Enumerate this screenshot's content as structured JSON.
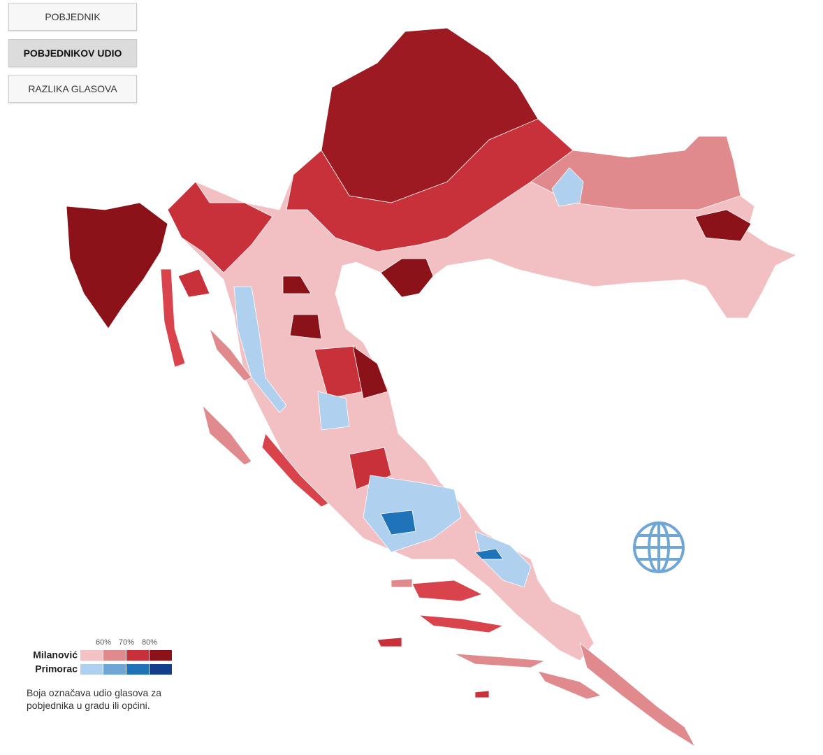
{
  "buttons": [
    {
      "label": "POBJEDNIK",
      "selected": false
    },
    {
      "label": "POBJEDNIKOV UDIO",
      "selected": true
    },
    {
      "label": "RAZLIKA GLASOVA",
      "selected": false
    }
  ],
  "legend": {
    "thresholds": [
      "60%",
      "70%",
      "80%"
    ],
    "rows": [
      {
        "name": "Milanović",
        "colors": [
          "#f4c2c4",
          "#e08a8d",
          "#c8313a",
          "#8b1218"
        ]
      },
      {
        "name": "Primorac",
        "colors": [
          "#afd0ee",
          "#6fa6d6",
          "#1f73b9",
          "#123e8c"
        ]
      }
    ],
    "note": "Boja označava udio glasova za pobjednika u gradu ili općini."
  }
}
